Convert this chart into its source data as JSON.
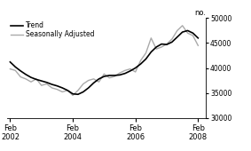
{
  "ylabel": "no.",
  "ylim": [
    30000,
    50000
  ],
  "yticks": [
    30000,
    35000,
    40000,
    45000,
    50000
  ],
  "xlim_start": 2002.0,
  "xlim_end": 2008.33,
  "xtick_positions": [
    2002.083,
    2004.083,
    2006.083,
    2008.083
  ],
  "xtick_labels": [
    "Feb\n2002",
    "Feb\n2004",
    "Feb\n2006",
    "Feb\n2008"
  ],
  "legend_entries": [
    "Trend",
    "Seasonally Adjusted"
  ],
  "trend_color": "#000000",
  "seasonal_color": "#aaaaaa",
  "trend_linewidth": 1.2,
  "seasonal_linewidth": 1.0,
  "background_color": "#ffffff",
  "trend_data": {
    "x": [
      2002.083,
      2002.25,
      2002.417,
      2002.583,
      2002.75,
      2002.917,
      2003.083,
      2003.25,
      2003.417,
      2003.583,
      2003.75,
      2003.917,
      2004.083,
      2004.25,
      2004.417,
      2004.583,
      2004.75,
      2004.917,
      2005.083,
      2005.25,
      2005.417,
      2005.583,
      2005.75,
      2005.917,
      2006.083,
      2006.25,
      2006.417,
      2006.583,
      2006.75,
      2006.917,
      2007.083,
      2007.25,
      2007.417,
      2007.583,
      2007.75,
      2007.917,
      2008.083
    ],
    "y": [
      41200,
      40200,
      39400,
      38700,
      38100,
      37700,
      37400,
      37100,
      36700,
      36400,
      36000,
      35500,
      34800,
      34700,
      35200,
      36000,
      37000,
      37800,
      38300,
      38500,
      38500,
      38600,
      38900,
      39400,
      40000,
      40800,
      41800,
      43200,
      44200,
      44800,
      44700,
      45200,
      46200,
      47200,
      47500,
      47000,
      46000
    ]
  },
  "seasonal_data": {
    "x": [
      2002.083,
      2002.25,
      2002.417,
      2002.583,
      2002.75,
      2002.917,
      2003.083,
      2003.25,
      2003.417,
      2003.583,
      2003.75,
      2003.917,
      2004.083,
      2004.25,
      2004.417,
      2004.583,
      2004.75,
      2004.917,
      2005.083,
      2005.25,
      2005.417,
      2005.583,
      2005.75,
      2005.917,
      2006.083,
      2006.25,
      2006.417,
      2006.583,
      2006.75,
      2006.917,
      2007.083,
      2007.25,
      2007.417,
      2007.583,
      2007.75,
      2007.917,
      2008.083
    ],
    "y": [
      39800,
      39500,
      38200,
      37800,
      37200,
      37800,
      36500,
      36800,
      36000,
      35700,
      35200,
      35500,
      34500,
      35500,
      36800,
      37500,
      37800,
      37200,
      38800,
      38000,
      38300,
      39000,
      39500,
      39800,
      39200,
      41500,
      43000,
      46000,
      43800,
      44200,
      44800,
      45800,
      47500,
      48500,
      47000,
      46500,
      44500
    ]
  }
}
